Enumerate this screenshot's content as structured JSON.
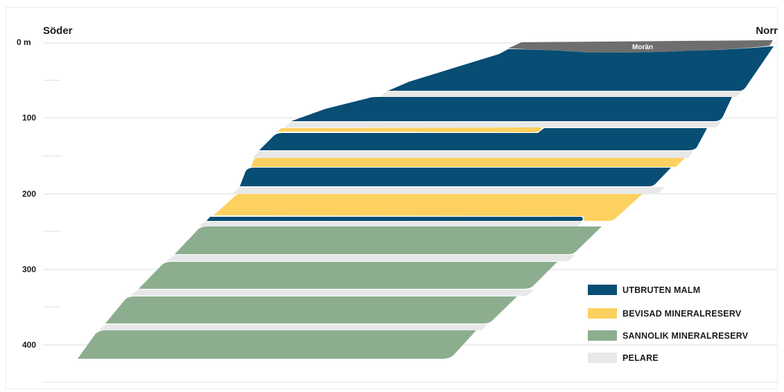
{
  "direction": {
    "left": "Söder",
    "right": "Norr"
  },
  "depth_unit_label": "0 m",
  "depth_ticks": [
    "100",
    "200",
    "300",
    "400"
  ],
  "overburden_label": "Morän",
  "legend": [
    {
      "key": "mined",
      "label": "UTBRUTEN MALM",
      "color": "#074d74"
    },
    {
      "key": "proven",
      "label": "BEVISAD MINERALRESERV",
      "color": "#fdd160"
    },
    {
      "key": "probable",
      "label": "SANNOLIK MINERALRESERV",
      "color": "#8cae8e"
    },
    {
      "key": "pillar",
      "label": "PELARE",
      "color": "#e8e8e8"
    }
  ],
  "colors": {
    "mined": "#074d74",
    "proven": "#fdd160",
    "probable": "#8cae8e",
    "pillar": "#e8e8e8",
    "moraine": "#6e6e6e",
    "gridline": "#dcdcdc"
  }
}
